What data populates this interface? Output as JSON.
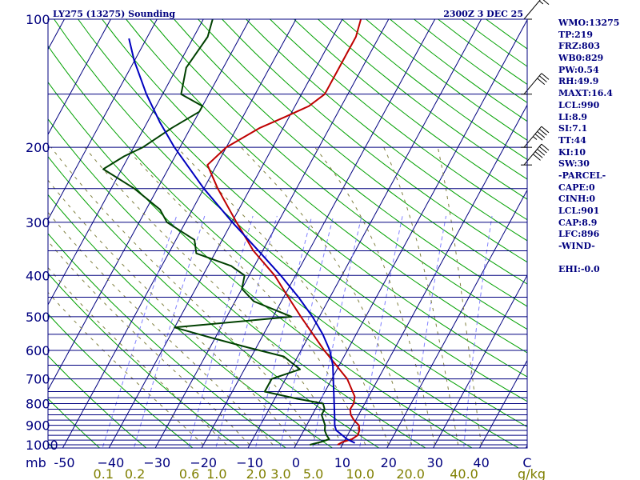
{
  "chart_data": {
    "type": "line",
    "title": "LY275 (13275) Sounding",
    "valid_time": "2300Z  3 DEC 25",
    "pressure_unit": "mb",
    "mixing_ratio_unit": "g/kg",
    "pressure_ticks": [
      1000,
      900,
      800,
      700,
      600,
      500,
      400,
      300,
      200,
      100
    ],
    "temperature_ticks": [
      -50,
      -40,
      -30,
      -20,
      -10,
      0,
      10,
      20,
      30,
      40
    ],
    "temperature_tick_labels": [
      "-50",
      "−40",
      "−30",
      "−20",
      "−10",
      "0",
      "10",
      "20",
      "30",
      "40"
    ],
    "corner_tick_label": "C",
    "mixing_ratio_ticks": [
      0.1,
      0.2,
      0.6,
      1.0,
      2.0,
      3.0,
      5.0,
      10.0,
      20.0,
      40.0
    ],
    "mixing_ratio_tick_labels": [
      "0.1",
      "0.2",
      "0.6",
      "1.0",
      "2.0",
      "3.0",
      "5.0",
      "10.0",
      "20.0",
      "40.0"
    ],
    "ylim": [
      1000,
      100
    ],
    "xlim": [
      -50,
      50
    ],
    "skew_deg_per_log_decade": 50,
    "mandatory_isobars": [
      1000,
      975,
      950,
      925,
      900,
      875,
      850,
      825,
      800,
      775,
      750,
      700,
      650,
      600,
      550,
      500,
      450,
      400,
      350,
      300,
      250,
      200,
      150
    ],
    "dry_adiabat_thetas_k": [
      220,
      230,
      240,
      250,
      260,
      270,
      280,
      290,
      300,
      310,
      320,
      330,
      340,
      350,
      360,
      370,
      380,
      390,
      400,
      410,
      420,
      430,
      440,
      450,
      460,
      470,
      480,
      490,
      500,
      510
    ],
    "moist_adiabat_start_temps_c": [
      -20,
      -15,
      -10,
      -5,
      0,
      5,
      10,
      15,
      20,
      25,
      30,
      35,
      40
    ],
    "series": [
      {
        "name": "Temperature",
        "color": "#bf0000",
        "points": [
          [
            1000,
            9.0
          ],
          [
            985,
            9.7
          ],
          [
            970,
            11.4
          ],
          [
            950,
            12.2
          ],
          [
            925,
            12.0
          ],
          [
            900,
            11.3
          ],
          [
            875,
            9.6
          ],
          [
            850,
            8.3
          ],
          [
            825,
            7.5
          ],
          [
            800,
            7.6
          ],
          [
            770,
            7.0
          ],
          [
            700,
            3.3
          ],
          [
            600,
            -5.0
          ],
          [
            500,
            -14.0
          ],
          [
            450,
            -19.0
          ],
          [
            400,
            -24.5
          ],
          [
            350,
            -32.0
          ],
          [
            300,
            -39.0
          ],
          [
            250,
            -47.0
          ],
          [
            220,
            -52.0
          ],
          [
            200,
            -50.0
          ],
          [
            180,
            -45.0
          ],
          [
            170,
            -41.0
          ],
          [
            160,
            -37.0
          ],
          [
            150,
            -35.0
          ],
          [
            130,
            -35.0
          ],
          [
            120,
            -35.0
          ],
          [
            110,
            -35.0
          ],
          [
            100,
            -36.0
          ]
        ]
      },
      {
        "name": "Dewpoint",
        "color": "#004000",
        "points": [
          [
            1000,
            3.0
          ],
          [
            985,
            5.0
          ],
          [
            970,
            6.5
          ],
          [
            950,
            5.5
          ],
          [
            925,
            4.5
          ],
          [
            900,
            4.0
          ],
          [
            875,
            3.0
          ],
          [
            850,
            2.0
          ],
          [
            825,
            2.0
          ],
          [
            800,
            1.0
          ],
          [
            780,
            -5.0
          ],
          [
            750,
            -13.0
          ],
          [
            700,
            -13.0
          ],
          [
            665,
            -8.0
          ],
          [
            620,
            -13.0
          ],
          [
            590,
            -22.0
          ],
          [
            560,
            -31.0
          ],
          [
            530,
            -40.0
          ],
          [
            500,
            -16.0
          ],
          [
            460,
            -26.0
          ],
          [
            430,
            -30.0
          ],
          [
            400,
            -31.0
          ],
          [
            380,
            -35.0
          ],
          [
            355,
            -44.0
          ],
          [
            330,
            -46.0
          ],
          [
            300,
            -54.0
          ],
          [
            280,
            -57.0
          ],
          [
            250,
            -65.0
          ],
          [
            225,
            -74.0
          ],
          [
            210,
            -71.0
          ],
          [
            200,
            -68.0
          ],
          [
            180,
            -64.0
          ],
          [
            165,
            -60.0
          ],
          [
            160,
            -60.0
          ],
          [
            150,
            -66.0
          ],
          [
            130,
            -68.0
          ],
          [
            110,
            -67.0
          ],
          [
            100,
            -68.0
          ]
        ]
      },
      {
        "name": "Parcel",
        "color": "#0000bf",
        "points": [
          [
            990,
            12.5
          ],
          [
            970,
            10.4
          ],
          [
            950,
            8.9
          ],
          [
            925,
            7.0
          ],
          [
            901,
            6.1
          ],
          [
            850,
            4.8
          ],
          [
            800,
            3.4
          ],
          [
            750,
            1.9
          ],
          [
            700,
            0.3
          ],
          [
            650,
            -1.4
          ],
          [
            600,
            -3.8
          ],
          [
            550,
            -7.2
          ],
          [
            500,
            -11.5
          ],
          [
            450,
            -16.8
          ],
          [
            400,
            -23.2
          ],
          [
            350,
            -30.9
          ],
          [
            300,
            -39.9
          ],
          [
            250,
            -50.0
          ],
          [
            200,
            -61.2
          ],
          [
            175,
            -67.2
          ],
          [
            150,
            -73.5
          ],
          [
            125,
            -80.1
          ],
          [
            111,
            -83.8
          ]
        ]
      }
    ],
    "wind_barbs": [
      {
        "pressure": 100,
        "direction_deg": 265,
        "speed_kt": 15
      },
      {
        "pressure": 150,
        "direction_deg": 265,
        "speed_kt": 30
      },
      {
        "pressure": 200,
        "direction_deg": 265,
        "speed_kt": 45
      },
      {
        "pressure": 220,
        "direction_deg": 265,
        "speed_kt": 50
      }
    ]
  },
  "indices": [
    "WMO:13275",
    "TP:219",
    "FRZ:803",
    "WB0:829",
    "PW:0.54",
    "RH:49.9",
    "MAXT:16.4",
    "LCL:990",
    "LI:8.9",
    "SI:7.1",
    "TT:44",
    "KI:10",
    "SW:30",
    "-PARCEL-",
    "CAPE:0",
    "CINH:0",
    "LCL:901",
    "CAP:8.9",
    "LFC:896",
    "-WIND-",
    "",
    "EHI:-0.0"
  ],
  "colors": {
    "isobar": "#00007f",
    "dry_adiabat": "#00a000",
    "isotherm": "#00007f",
    "mixing_ratio": "#7f7fff",
    "moist_adiabat": "#808040",
    "label_text": "#00007f",
    "mixing_label": "#7f7f00"
  }
}
